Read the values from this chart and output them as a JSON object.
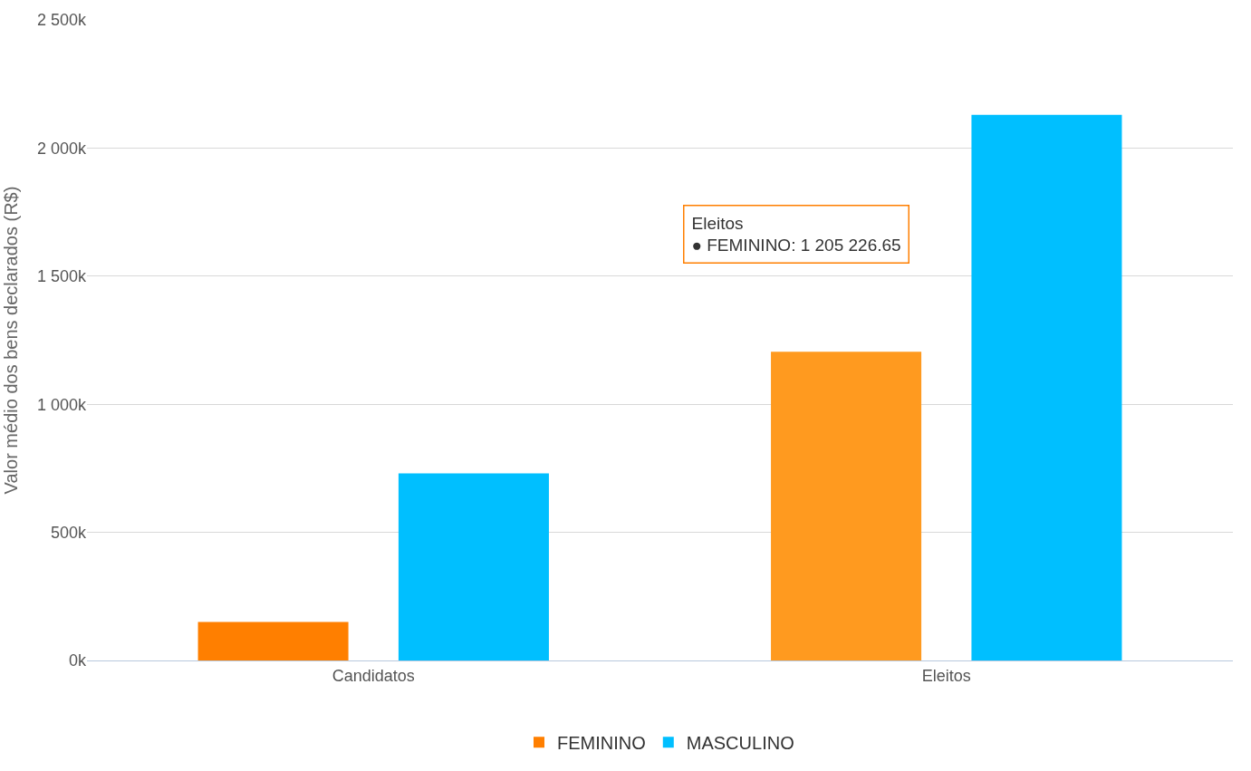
{
  "chart_data": {
    "type": "bar",
    "ylabel": "Valor médio dos bens declarados (R$)",
    "categories": [
      "Candidatos",
      "Eleitos"
    ],
    "series": [
      {
        "name": "FEMININO",
        "color": "#ff7f00",
        "colors": [
          "#ff7f00",
          "#ff9a1f"
        ],
        "values": [
          150000,
          1205226.65
        ]
      },
      {
        "name": "MASCULINO",
        "color": "#00bfff",
        "values": [
          730000,
          2130000
        ]
      }
    ],
    "ylim": [
      0,
      2500000
    ],
    "yticks": [
      {
        "value": 0,
        "label": "0k"
      },
      {
        "value": 500000,
        "label": "500k"
      },
      {
        "value": 1000000,
        "label": "1 000k"
      },
      {
        "value": 1500000,
        "label": "1 500k"
      },
      {
        "value": 2000000,
        "label": "2 000k"
      },
      {
        "value": 2500000,
        "label": "2 500k"
      }
    ],
    "annotations": [
      "Eleitos\n● FEMININO: 1 205 226.65"
    ],
    "grid": "y",
    "legend": "bottom"
  }
}
